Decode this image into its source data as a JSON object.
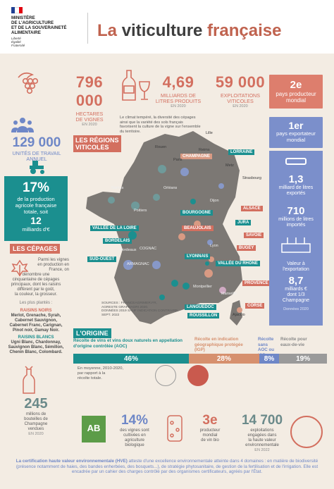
{
  "header": {
    "ministry_lines": [
      "MINISTÈRE",
      "DE L'AGRICULTURE",
      "ET DE LA SOUVERAINETÉ",
      "ALIMENTAIRE"
    ],
    "motto_lines": [
      "Liberté",
      "Égalité",
      "Fraternité"
    ],
    "title_prefix": "La ",
    "title_highlight": "viticulture",
    "title_suffix": " française"
  },
  "top_stats": [
    {
      "value": "796 000",
      "label_line1": "HECTARES",
      "label_line2": "DE VIGNES",
      "source": "EN 2020"
    },
    {
      "value": "4,69",
      "label_line1": "MILLIARDS DE",
      "label_line2": "LITRES PRODUITS",
      "source": "EN 2020"
    },
    {
      "value": "59 000",
      "label_line1": "EXPLOITATIONS",
      "label_line2": "VITICOLES",
      "source": "EN 2020"
    }
  ],
  "producer_rank": {
    "rank": "2e",
    "text_line1": "pays producteur",
    "text_line2": "mondial"
  },
  "map_intro": [
    "Le climat tempéré, la diversité des cépages",
    "ainsi que la variété des sols français",
    "favorisent la culture de la vigne sur l'ensemble",
    "du territoire."
  ],
  "map_title_line1": "LES RÉGIONS",
  "map_title_line2": "VITICOLES",
  "regions": {
    "champagne": "CHAMPAGNE",
    "lorraine": "LORRAINE",
    "alsace": "ALSACE",
    "bourgogne": "BOURGOGNE",
    "jura": "JURA",
    "savoie": "SAVOIE",
    "bugey": "BUGEY",
    "vallee_loire": "VALLÉE DE LA LOIRE",
    "beaujolais": "BEAUJOLAIS",
    "lyonnais": "LYONNAIS",
    "bordelais": "BORDELAIS",
    "cognac": "COGNAC",
    "vallee_rhone": "VALLÉE DU RHÔNE",
    "sud_ouest": "SUD-OUEST",
    "armagnac": "ARMAGNAC",
    "provence": "PROVENCE",
    "languedoc": "LANGUEDOC",
    "roussillon": "ROUSSILLON",
    "corse": "CORSE"
  },
  "cities": {
    "lille": "Lille",
    "rouen": "Rouen",
    "reims": "Reims",
    "paris": "Paris",
    "metz": "Metz",
    "strasbourg": "Strasbourg",
    "nantes": "Nantes",
    "orleans": "Orléans",
    "dijon": "Dijon",
    "poitiers": "Poitiers",
    "lyon": "Lyon",
    "bordeaux": "Bordeaux",
    "montpellier": "Montpellier",
    "marseille": "Marseille",
    "ajaccio": "Ajaccio"
  },
  "map_source_lines": [
    "SOURCES : FRANCEAGRIMER.FR,",
    "AGRESTE GRAPHAGRI 2020.",
    "DONNÉES 2019 SAUF INDICATION CONTRAIRE.",
    "SEPT. 2022"
  ],
  "labour": {
    "value": "129 000",
    "label_line1": "UNITÉS DE TRAVAIL",
    "label_line2": "ANNUEL"
  },
  "share": {
    "percent": "17%",
    "line1": "de la production",
    "line2": "agricole française",
    "line3": "totale, soit",
    "amount": "12",
    "amount_unit": "milliards d'€"
  },
  "cepages": {
    "title": "LES CÉPAGES",
    "intro": [
      "Parmi les vignes",
      "en production en",
      "France, on",
      "dénombre une",
      "cinquantaine de cépages",
      "principaux, dont les raisins",
      "diffèrent par le goût,",
      "la couleur, la grosseur."
    ],
    "planted_label": "Les plus plantés :",
    "noirs_title": "RAISINS NOIRS",
    "noirs": [
      "Merlot, Grenache, Syrah,",
      "Cabernet Sauvignon,",
      "Cabernet Franc, Carignan,",
      "Pinot noir, Gamay Noir."
    ],
    "blancs_title": "RAISINS BLANCS",
    "blancs": [
      "Ugni Blanc, Chardonnay,",
      "Sauvignon Blanc, Sémillon,",
      "Chenin Blanc, Colombard."
    ]
  },
  "exporter": {
    "rank": "1er",
    "line1": "pays exportateur",
    "line2": "mondial"
  },
  "exports_litres": {
    "value": "1,3",
    "line1": "milliard de litres",
    "line2": "exportés"
  },
  "imports_litres": {
    "value": "710",
    "line1": "millions de litres",
    "line2": "importés"
  },
  "export_value": {
    "line1": "Valeur à",
    "line2": "l'exportation",
    "value": "8,7",
    "line3": "milliards €",
    "line4": "dont 1/3",
    "line5": "Champagne",
    "source": "Données 2020"
  },
  "origin": {
    "title": "L'ORIGINE",
    "cat_aoc": "Récolte de vins et vins doux naturels en appellation d'origine contrôlée (AOC)",
    "cat_igp": "Récolte en indication géographique protégée (IGP)",
    "cat_sans": "Récolte sans AOC ou IGP",
    "cat_eaux": "Récolte pour eaux-de-vie",
    "values": [
      46,
      28,
      8,
      19
    ],
    "value_labels": [
      "46%",
      "28%",
      "8%",
      "19%"
    ],
    "colors": [
      "#1b8f8f",
      "#d6906e",
      "#6e87c7",
      "#9a9a9a"
    ],
    "note": [
      "En moyenne, 2010-2020,",
      "par rapport à la",
      "récolte totale."
    ]
  },
  "champagne_bottles": {
    "value": "245",
    "line1": "millions de",
    "line2": "bouteilles de",
    "line3": "Champagne",
    "line4": "vendues",
    "source": "EN 2020"
  },
  "bio": {
    "percent": "14%",
    "line1": "des vignes sont",
    "line2": "cultivées en",
    "line3": "agriculture",
    "line4": "biologique",
    "ab_label": "AB"
  },
  "bio_rank": {
    "rank": "3e",
    "line1": "producteur",
    "line2": "mondial",
    "line3": "de vin bio"
  },
  "hve": {
    "value": "14 700",
    "line1": "exploitations",
    "line2": "engagées dans",
    "line3": "la haute valeur",
    "line4": "environnementale",
    "source": "EN 2022"
  },
  "footer": {
    "bold": "La certification haute valeur environnementale (HVE)",
    "text": " atteste d'une excellence environnementale atteinte dans 4 domaines : en matière de biodiversité (présence notamment de haies, des bandes enherbées, des bosquets...), de stratégie phytosanitaire, de gestion de la fertilisation et de l'irrigation. Elle est encadrée par un cahier des charges contrôlé par des organismes certificateurs, agréés par l'État."
  },
  "colors": {
    "salmon": "#d36f5f",
    "teal": "#1b8f8f",
    "blue": "#6e87c7",
    "map": "#7c7874",
    "background": "#f3ece3"
  }
}
